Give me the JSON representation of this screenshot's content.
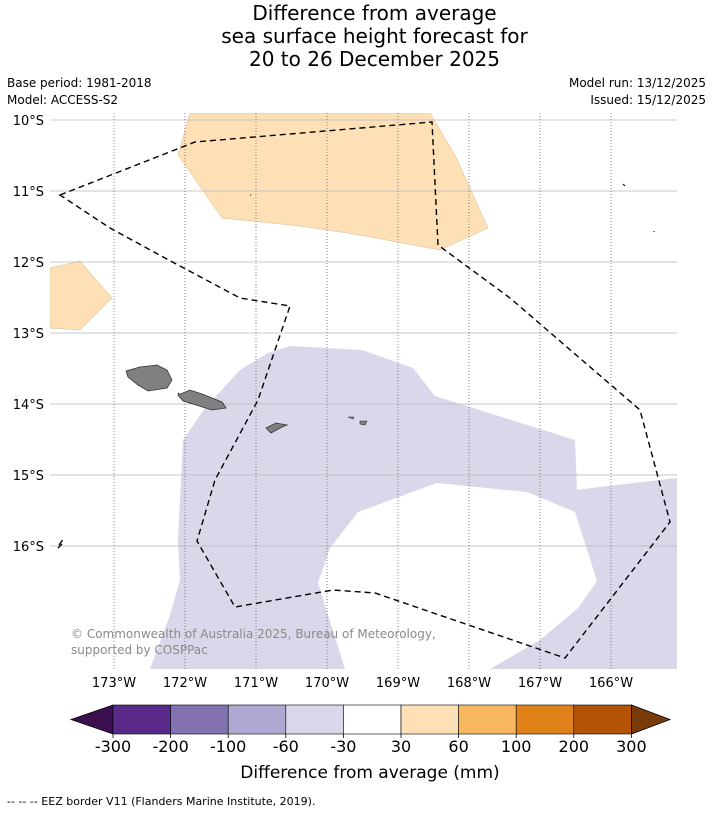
{
  "title": {
    "line1": "Difference from average",
    "line2": "sea surface height forecast for",
    "line3": "20 to 26 December 2025"
  },
  "meta": {
    "base_period": "Base period: 1981-2018",
    "model": "Model: ACCESS-S2",
    "model_run": "Model run: 13/12/2025",
    "issued": "Issued: 15/12/2025"
  },
  "axes": {
    "lat_labels": [
      "10°S",
      "11°S",
      "12°S",
      "13°S",
      "14°S",
      "15°S",
      "16°S"
    ],
    "lon_labels": [
      "173°W",
      "172°W",
      "171°W",
      "170°W",
      "169°W",
      "168°W",
      "167°W",
      "166°W"
    ]
  },
  "credit": "© Commonwealth of Australia 2025, Bureau of Meteorology, supported by COSPPac",
  "colorbar": {
    "ticks": [
      "-300",
      "-200",
      "-100",
      "-60",
      "-30",
      "30",
      "60",
      "100",
      "200",
      "300"
    ],
    "colors": [
      "#3b0f50",
      "#5a2a8a",
      "#8273b0",
      "#b0a8d2",
      "#d8d8ea",
      "#ffffff",
      "#fde0b6",
      "#f9b760",
      "#e0821a",
      "#b45306",
      "#7a3b0a"
    ],
    "label": "Difference from average (mm)"
  },
  "footer": "--  --  -- EEZ border V11 (Flanders Marine Institute, 2019).",
  "colors": {
    "negative_light": "#d8d8ea",
    "positive_light": "#fde0b6",
    "land": "#808080",
    "grid": "#b0b0b0"
  }
}
